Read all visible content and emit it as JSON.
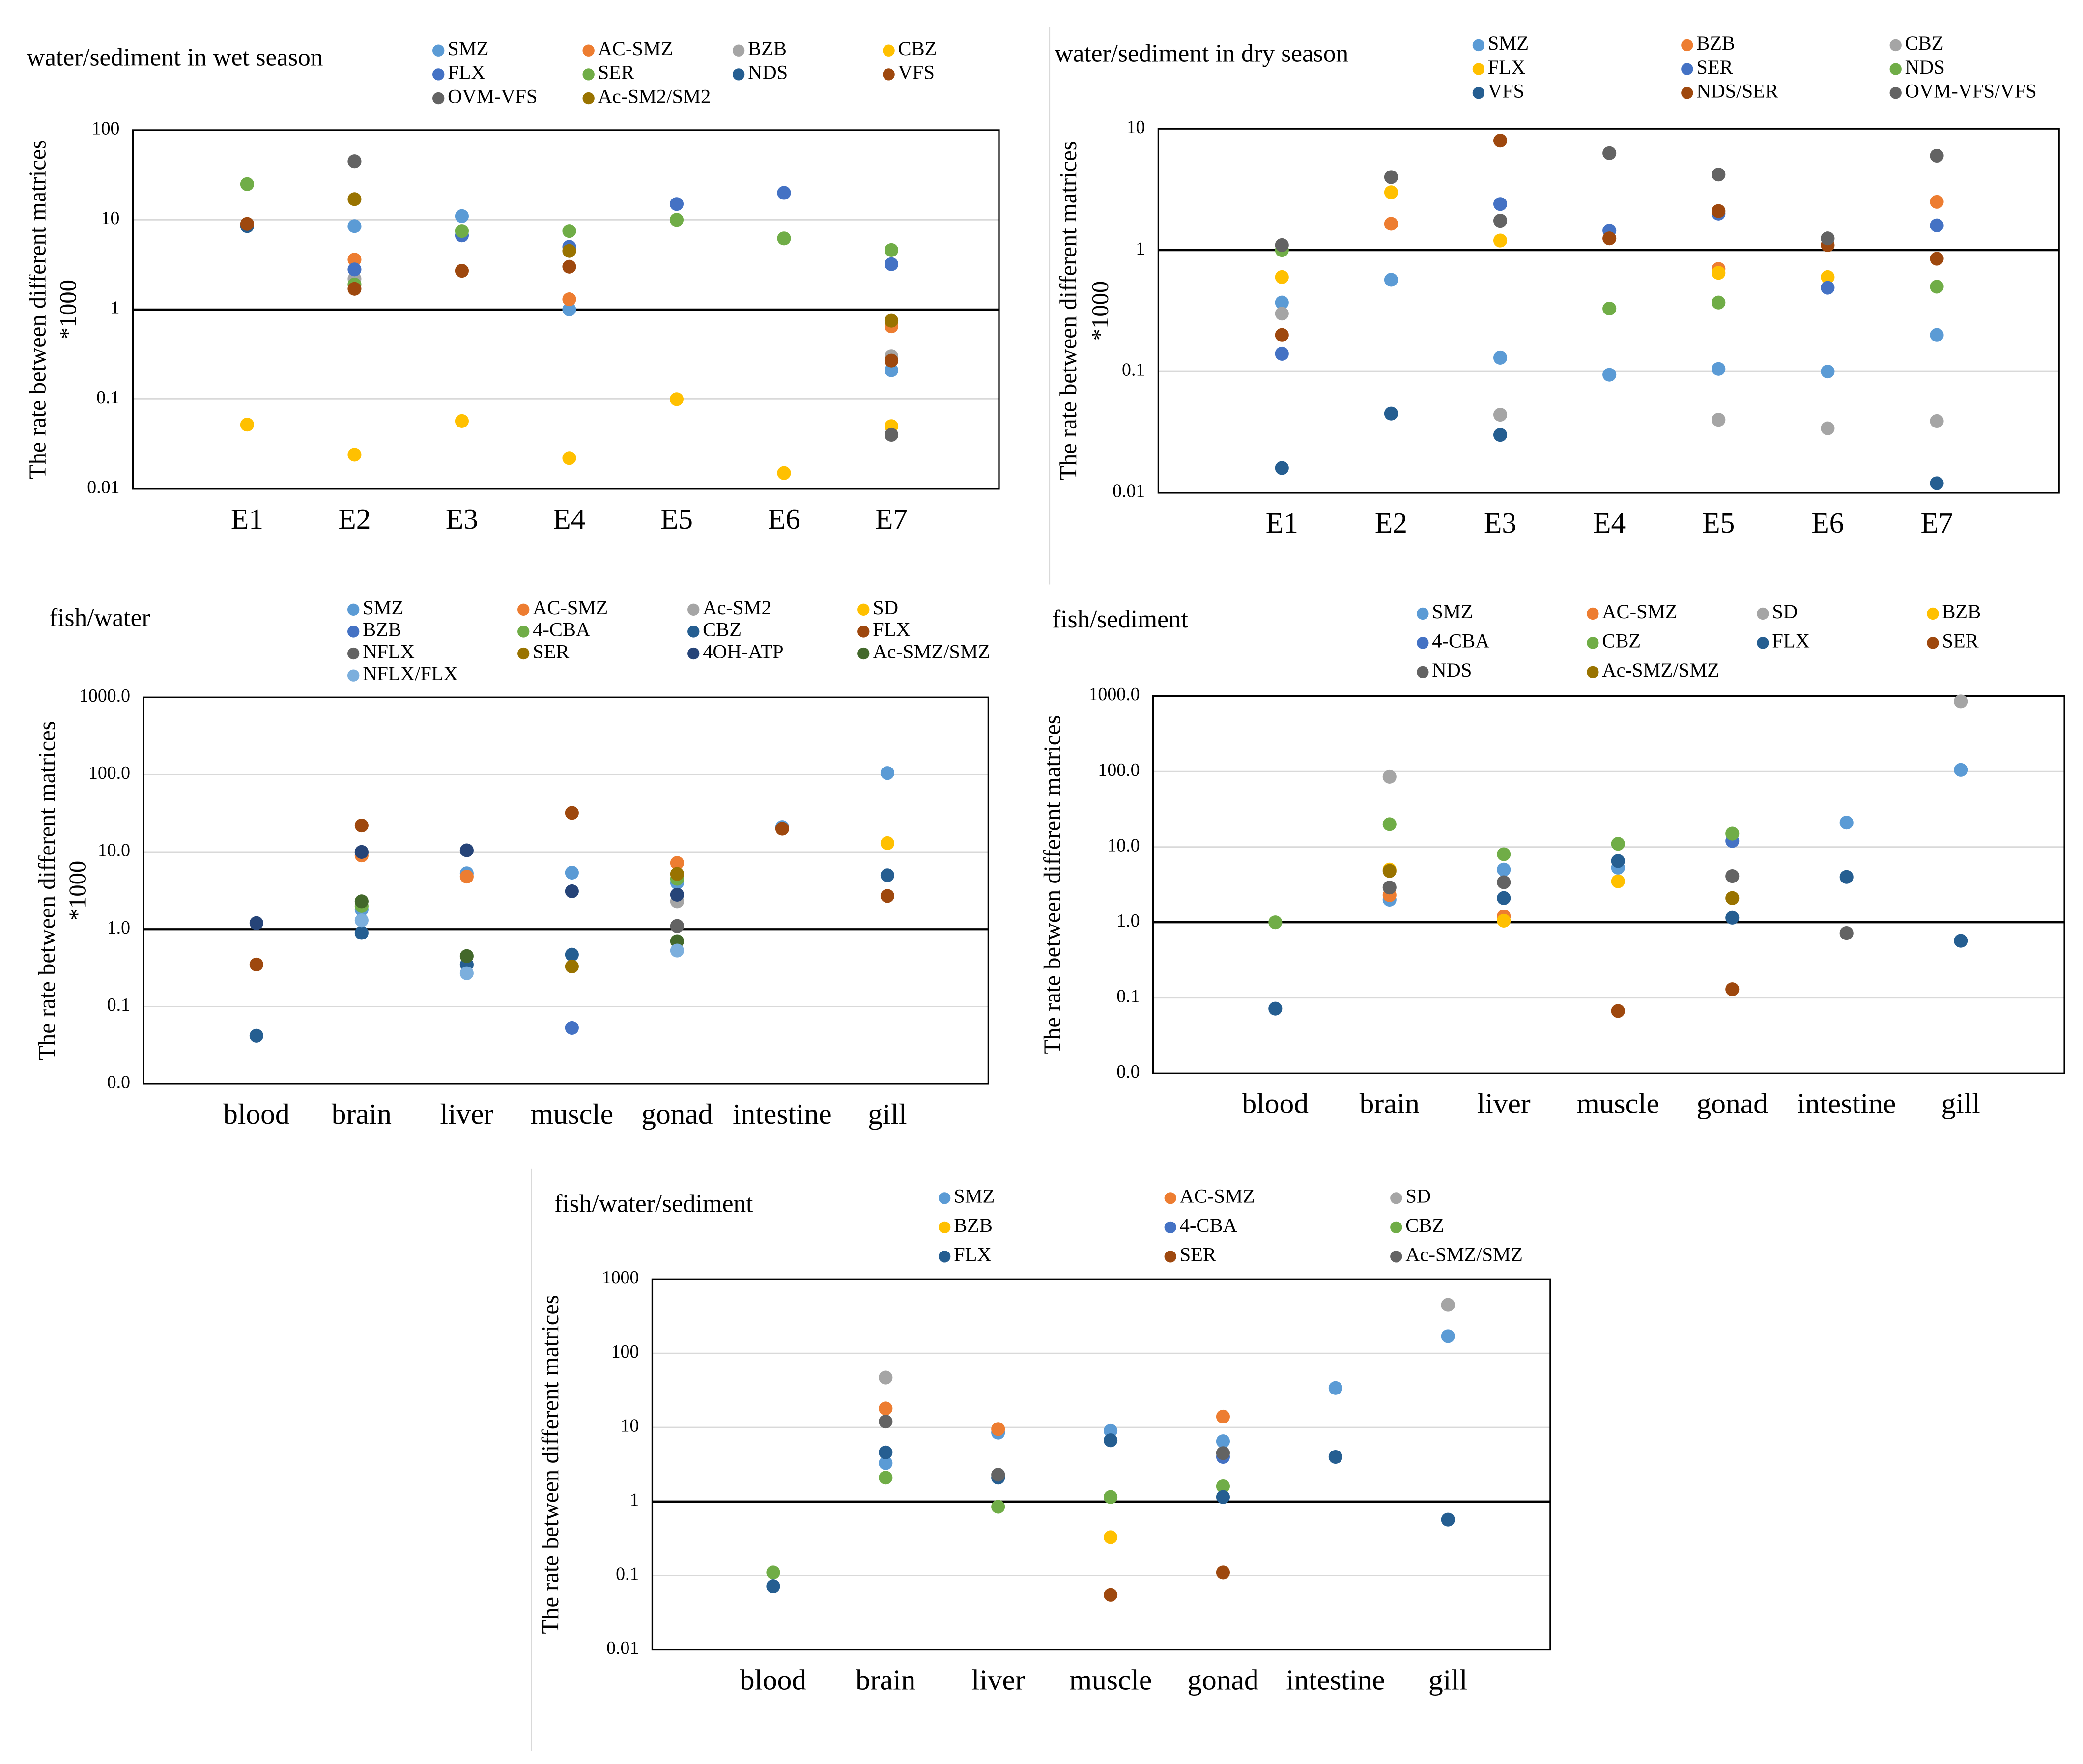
{
  "chart_data": [
    {
      "type": "scatter",
      "title": "water/sediment in wet season",
      "y_label": "The rate between different matrices",
      "y_unit": "*1000",
      "categories": [
        "E1",
        "E2",
        "E3",
        "E4",
        "E5",
        "E6",
        "E7"
      ],
      "log_y": true,
      "grid": true,
      "ylim": [
        0.01,
        100
      ],
      "yticks": [
        0.01,
        0.1,
        1,
        10,
        100
      ],
      "series": [
        {
          "name": "SMZ",
          "color": "#5b9bd5",
          "values": [
            null,
            8.5,
            11,
            1,
            null,
            null,
            0.21
          ]
        },
        {
          "name": "AC-SMZ",
          "color": "#ed7d31",
          "values": [
            null,
            3.6,
            null,
            1.3,
            null,
            null,
            0.65
          ]
        },
        {
          "name": "BZB",
          "color": "#a5a5a5",
          "values": [
            null,
            2.2,
            null,
            null,
            null,
            null,
            0.3
          ]
        },
        {
          "name": "CBZ",
          "color": "#ffc000",
          "values": [
            0.052,
            0.024,
            0.057,
            0.022,
            0.1,
            0.015,
            0.05
          ]
        },
        {
          "name": "FLX",
          "color": "#4472c4",
          "values": [
            null,
            2.8,
            6.7,
            5,
            15,
            20,
            3.2
          ]
        },
        {
          "name": "SER",
          "color": "#70ad47",
          "values": [
            25,
            1.9,
            7.5,
            7.5,
            10,
            6.2,
            4.6
          ]
        },
        {
          "name": "NDS",
          "color": "#255e91",
          "values": [
            8.5,
            null,
            null,
            null,
            null,
            null,
            null
          ]
        },
        {
          "name": "VFS",
          "color": "#9e480e",
          "values": [
            9,
            1.7,
            2.7,
            3,
            null,
            null,
            0.27
          ]
        },
        {
          "name": "OVM-VFS",
          "color": "#636363",
          "values": [
            null,
            45,
            null,
            null,
            null,
            null,
            0.04
          ]
        },
        {
          "name": "Ac-SM2/SM2",
          "color": "#997300",
          "values": [
            null,
            17,
            null,
            4.5,
            null,
            null,
            0.75
          ]
        }
      ]
    },
    {
      "type": "scatter",
      "title": "water/sediment in dry season",
      "y_label": "The rate between different matrices",
      "y_unit": "*1000",
      "categories": [
        "E1",
        "E2",
        "E3",
        "E4",
        "E5",
        "E6",
        "E7"
      ],
      "log_y": true,
      "grid": true,
      "ylim": [
        0.01,
        10
      ],
      "yticks": [
        0.01,
        0.1,
        1,
        10
      ],
      "series": [
        {
          "name": "SMZ",
          "color": "#5b9bd5",
          "values": [
            0.37,
            0.57,
            0.13,
            0.094,
            0.105,
            0.1,
            0.2
          ]
        },
        {
          "name": "BZB",
          "color": "#ed7d31",
          "values": [
            null,
            1.65,
            null,
            null,
            0.7,
            null,
            2.5
          ]
        },
        {
          "name": "CBZ",
          "color": "#a5a5a5",
          "values": [
            0.3,
            null,
            0.044,
            null,
            0.04,
            0.034,
            0.039
          ]
        },
        {
          "name": "FLX",
          "color": "#ffc000",
          "values": [
            0.6,
            3,
            1.2,
            null,
            0.65,
            0.6,
            null
          ]
        },
        {
          "name": "SER",
          "color": "#4472c4",
          "values": [
            0.14,
            null,
            2.4,
            1.45,
            2.0,
            0.49,
            1.6
          ]
        },
        {
          "name": "NDS",
          "color": "#70ad47",
          "values": [
            1.0,
            null,
            null,
            0.33,
            0.37,
            null,
            0.5
          ]
        },
        {
          "name": "VFS",
          "color": "#255e91",
          "values": [
            0.016,
            0.045,
            0.03,
            null,
            null,
            null,
            0.012
          ]
        },
        {
          "name": "NDS/SER",
          "color": "#9e480e",
          "values": [
            0.2,
            null,
            8,
            1.25,
            2.1,
            1.1,
            0.85
          ]
        },
        {
          "name": "OVM-VFS/VFS",
          "color": "#636363",
          "values": [
            1.1,
            4,
            1.75,
            6.3,
            4.2,
            1.25,
            6
          ]
        }
      ]
    },
    {
      "type": "scatter",
      "title": "fish/water",
      "y_label": "The rate between different matrices",
      "y_unit": "*1000",
      "categories": [
        "blood",
        "brain",
        "liver",
        "muscle",
        "gonad",
        "intestine",
        "gill"
      ],
      "log_y": true,
      "grid": true,
      "ylim": [
        0.01,
        1000
      ],
      "yticks": [
        {
          "value": 0.01,
          "label": "0.0"
        },
        0.1,
        {
          "value": 1,
          "label": "1.0"
        },
        {
          "value": 10,
          "label": "10.0"
        },
        {
          "value": 100,
          "label": "100.0"
        },
        {
          "value": 1000,
          "label": "1000.0"
        }
      ],
      "series": [
        {
          "name": "SMZ",
          "color": "#5b9bd5",
          "values": [
            null,
            1.8,
            5.3,
            5.4,
            4,
            21,
            105
          ]
        },
        {
          "name": "AC-SMZ",
          "color": "#ed7d31",
          "values": [
            null,
            9,
            4.8,
            null,
            7.2,
            null,
            null
          ]
        },
        {
          "name": "Ac-SM2",
          "color": "#a5a5a5",
          "values": [
            null,
            null,
            null,
            null,
            2.3,
            null,
            null
          ]
        },
        {
          "name": "SD",
          "color": "#ffc000",
          "values": [
            null,
            null,
            null,
            null,
            null,
            null,
            13
          ]
        },
        {
          "name": "BZB",
          "color": "#4472c4",
          "values": [
            null,
            null,
            null,
            0.053,
            null,
            null,
            null
          ]
        },
        {
          "name": "4-CBA",
          "color": "#70ad47",
          "values": [
            null,
            2,
            null,
            null,
            4.5,
            null,
            null
          ]
        },
        {
          "name": "CBZ",
          "color": "#255e91",
          "values": [
            0.042,
            0.9,
            0.35,
            0.47,
            null,
            null,
            5
          ]
        },
        {
          "name": "FLX",
          "color": "#9e480e",
          "values": [
            0.35,
            22,
            null,
            32,
            null,
            20,
            2.7
          ]
        },
        {
          "name": "NFLX",
          "color": "#636363",
          "values": [
            null,
            10,
            null,
            null,
            1.1,
            null,
            null
          ]
        },
        {
          "name": "SER",
          "color": "#997300",
          "values": [
            null,
            null,
            null,
            0.33,
            5.2,
            null,
            null
          ]
        },
        {
          "name": "4OH-ATP",
          "color": "#264478",
          "values": [
            1.2,
            10,
            10.5,
            3.1,
            2.8,
            null,
            null
          ]
        },
        {
          "name": "Ac-SMZ/SMZ",
          "color": "#43682b",
          "values": [
            null,
            2.3,
            0.45,
            null,
            0.7,
            null,
            null
          ]
        },
        {
          "name": "NFLX/FLX",
          "color": "#7cafdd",
          "values": [
            null,
            1.3,
            0.27,
            null,
            0.53,
            null,
            null
          ]
        }
      ]
    },
    {
      "type": "scatter",
      "title": "fish/sediment",
      "y_label": "The rate between different matrices",
      "categories": [
        "blood",
        "brain",
        "liver",
        "muscle",
        "gonad",
        "intestine",
        "gill"
      ],
      "log_y": true,
      "grid": true,
      "ylim": [
        0.01,
        1000
      ],
      "yticks": [
        {
          "value": 0.01,
          "label": "0.0"
        },
        0.1,
        {
          "value": 1,
          "label": "1.0"
        },
        {
          "value": 10,
          "label": "10.0"
        },
        {
          "value": 100,
          "label": "100.0"
        },
        {
          "value": 1000,
          "label": "1000.0"
        }
      ],
      "series": [
        {
          "name": "SMZ",
          "color": "#5b9bd5",
          "values": [
            null,
            2,
            5,
            5.3,
            null,
            21,
            105
          ]
        },
        {
          "name": "AC-SMZ",
          "color": "#ed7d31",
          "values": [
            null,
            2.3,
            1.2,
            null,
            null,
            null,
            null
          ]
        },
        {
          "name": "SD",
          "color": "#a5a5a5",
          "values": [
            null,
            85,
            null,
            null,
            null,
            null,
            850
          ]
        },
        {
          "name": "BZB",
          "color": "#ffc000",
          "values": [
            null,
            5,
            1.05,
            3.5,
            null,
            null,
            null
          ]
        },
        {
          "name": "4-CBA",
          "color": "#4472c4",
          "values": [
            null,
            null,
            null,
            null,
            12,
            null,
            null
          ]
        },
        {
          "name": "CBZ",
          "color": "#70ad47",
          "values": [
            1.0,
            20,
            8,
            11,
            15,
            null,
            null
          ]
        },
        {
          "name": "FLX",
          "color": "#255e91",
          "values": [
            0.072,
            null,
            2.1,
            6.5,
            1.15,
            4,
            0.57
          ]
        },
        {
          "name": "SER",
          "color": "#9e480e",
          "values": [
            null,
            null,
            null,
            0.067,
            0.13,
            null,
            null
          ]
        },
        {
          "name": "NDS",
          "color": "#636363",
          "values": [
            null,
            2.9,
            3.4,
            null,
            4.1,
            0.72,
            null
          ]
        },
        {
          "name": "Ac-SMZ/SMZ",
          "color": "#997300",
          "values": [
            null,
            4.8,
            null,
            null,
            2.1,
            null,
            null
          ]
        }
      ]
    },
    {
      "type": "scatter",
      "title": "fish/water/sediment",
      "y_label": "The rate between different matrices",
      "categories": [
        "blood",
        "brain",
        "liver",
        "muscle",
        "gonad",
        "intestine",
        "gill"
      ],
      "log_y": true,
      "grid": true,
      "ylim": [
        0.01,
        1000
      ],
      "yticks": [
        0.01,
        0.1,
        1,
        10,
        100,
        1000
      ],
      "series": [
        {
          "name": "SMZ",
          "color": "#5b9bd5",
          "values": [
            null,
            3.3,
            8.5,
            9,
            6.5,
            34,
            170
          ]
        },
        {
          "name": "AC-SMZ",
          "color": "#ed7d31",
          "values": [
            null,
            18,
            9.5,
            null,
            14,
            null,
            null
          ]
        },
        {
          "name": "SD",
          "color": "#a5a5a5",
          "values": [
            null,
            47,
            null,
            null,
            null,
            null,
            450
          ]
        },
        {
          "name": "BZB",
          "color": "#ffc000",
          "values": [
            null,
            null,
            null,
            0.33,
            null,
            null,
            null
          ]
        },
        {
          "name": "4-CBA",
          "color": "#4472c4",
          "values": [
            null,
            null,
            null,
            null,
            4,
            null,
            null
          ]
        },
        {
          "name": "CBZ",
          "color": "#70ad47",
          "values": [
            0.11,
            2.1,
            0.85,
            1.15,
            1.6,
            null,
            null
          ]
        },
        {
          "name": "FLX",
          "color": "#255e91",
          "values": [
            0.072,
            4.6,
            2.1,
            6.7,
            1.15,
            4,
            0.57
          ]
        },
        {
          "name": "SER",
          "color": "#9e480e",
          "values": [
            null,
            null,
            null,
            0.055,
            0.11,
            null,
            null
          ]
        },
        {
          "name": "Ac-SMZ/SMZ",
          "color": "#636363",
          "values": [
            null,
            12,
            2.3,
            null,
            4.5,
            null,
            null
          ]
        }
      ]
    }
  ]
}
